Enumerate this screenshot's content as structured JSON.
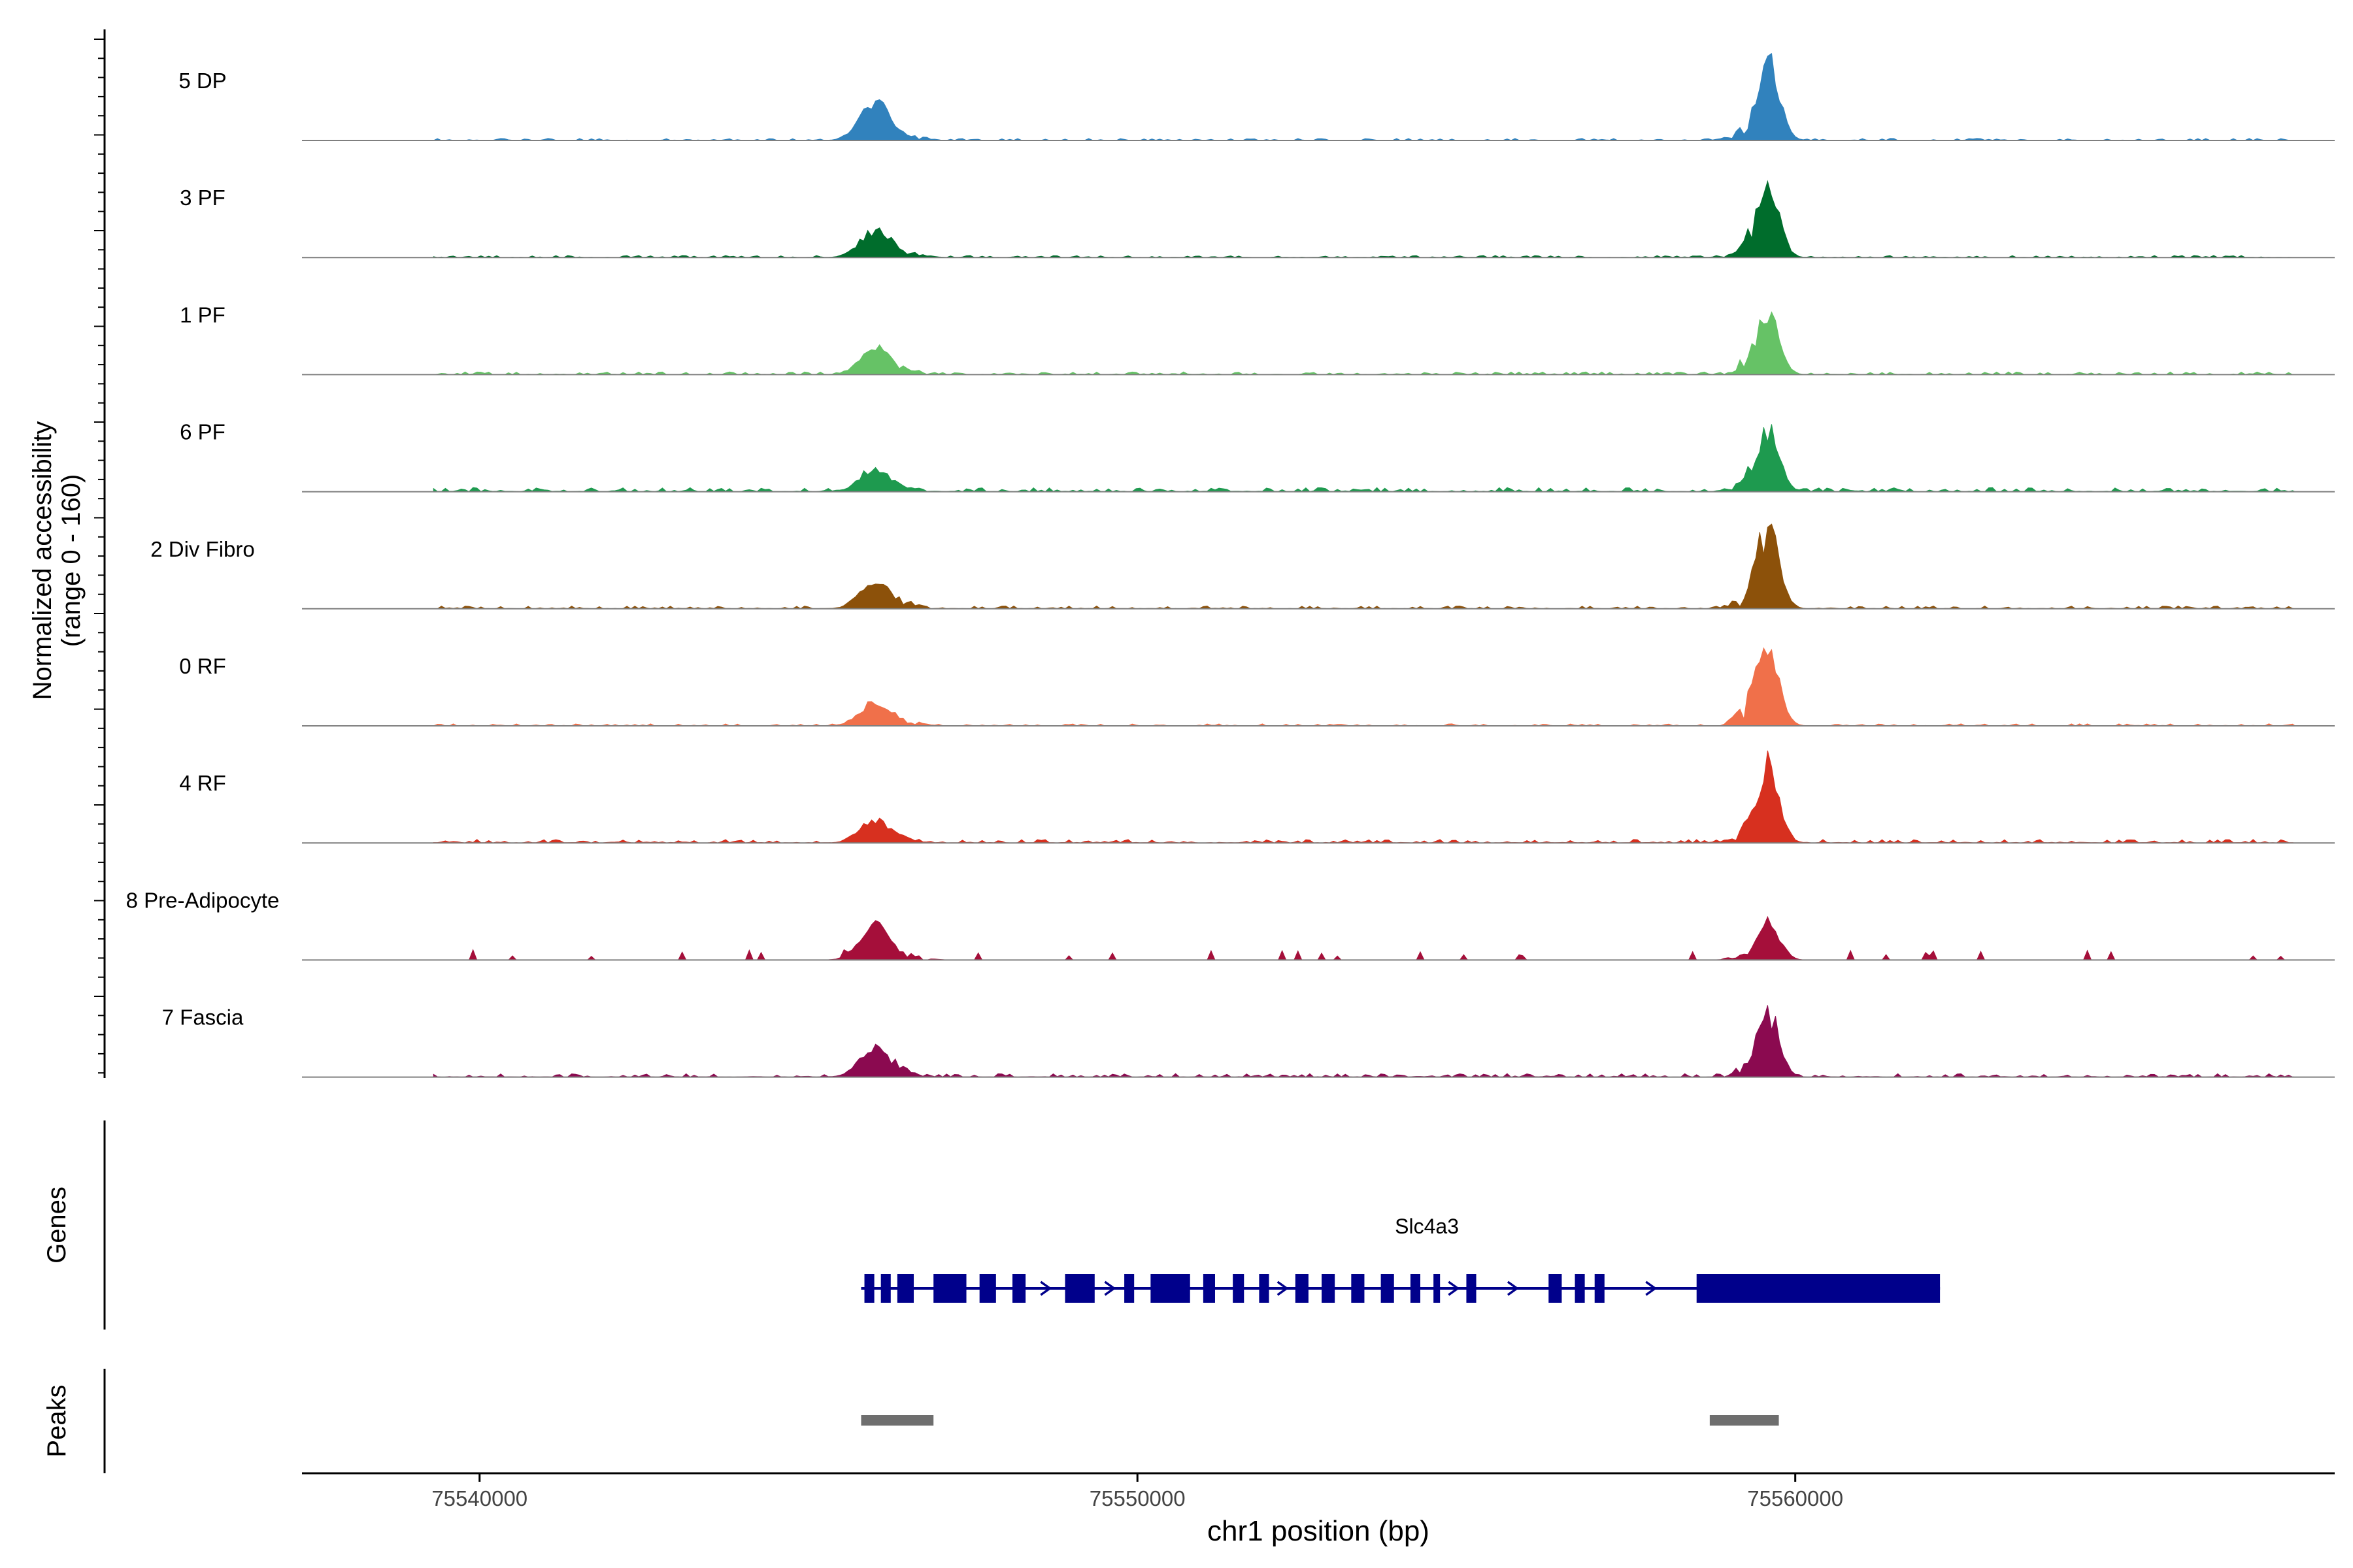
{
  "chart_data": {
    "type": "area",
    "title": "",
    "ylabel_line1": "Normalized accessibility",
    "ylabel_line2": "(range 0 - 160)",
    "xlabel": "chr1 position (bp)",
    "ylim": [
      0,
      160
    ],
    "xlim": [
      75537300,
      75568200
    ],
    "xticks": [
      {
        "value": 75540000,
        "label": "75540000"
      },
      {
        "value": 75550000,
        "label": "75550000"
      },
      {
        "value": 75560000,
        "label": "75560000"
      }
    ],
    "tracks": [
      {
        "name": "5 DP",
        "color": "#3182bd",
        "peak1": 55,
        "peak2": 110,
        "noise": 3,
        "sparse": false
      },
      {
        "name": "3 PF",
        "color": "#006d2c",
        "peak1": 40,
        "peak2": 95,
        "noise": 3,
        "sparse": false
      },
      {
        "name": "1 PF",
        "color": "#66c266",
        "peak1": 40,
        "peak2": 85,
        "noise": 4,
        "sparse": false
      },
      {
        "name": "6 PF",
        "color": "#1e9a4f",
        "peak1": 35,
        "peak2": 85,
        "noise": 6,
        "sparse": false
      },
      {
        "name": "2 Div Fibro",
        "color": "#8c510a",
        "peak1": 40,
        "peak2": 115,
        "noise": 4,
        "sparse": false
      },
      {
        "name": "0 RF",
        "color": "#f0704a",
        "peak1": 35,
        "peak2": 110,
        "noise": 3,
        "sparse": false
      },
      {
        "name": "4 RF",
        "color": "#d7301f",
        "peak1": 35,
        "peak2": 105,
        "noise": 5,
        "sparse": false
      },
      {
        "name": "8 Pre-Adipocyte",
        "color": "#a50f3a",
        "peak1": 50,
        "peak2": 55,
        "noise": 12,
        "sparse": true
      },
      {
        "name": "7 Fascia",
        "color": "#8b0a50",
        "peak1": 45,
        "peak2": 90,
        "noise": 5,
        "sparse": false
      }
    ],
    "peak_centers": [
      75546000,
      75559600
    ],
    "gene": {
      "name": "Slc4a3",
      "start": 75545800,
      "end": 75562200,
      "strand": "+",
      "color": "#00008b",
      "exons": [
        [
          75545850,
          75546000
        ],
        [
          75546100,
          75546250
        ],
        [
          75546350,
          75546600
        ],
        [
          75546900,
          75547400
        ],
        [
          75547600,
          75547850
        ],
        [
          75548100,
          75548300
        ],
        [
          75548900,
          75549350
        ],
        [
          75549800,
          75549950
        ],
        [
          75550200,
          75550800
        ],
        [
          75551000,
          75551180
        ],
        [
          75551450,
          75551620
        ],
        [
          75551850,
          75552000
        ],
        [
          75552400,
          75552600
        ],
        [
          75552800,
          75553000
        ],
        [
          75553250,
          75553450
        ],
        [
          75553700,
          75553900
        ],
        [
          75554150,
          75554300
        ],
        [
          75554500,
          75554600
        ],
        [
          75555000,
          75555150
        ],
        [
          75556250,
          75556450
        ],
        [
          75556650,
          75556800
        ],
        [
          75556950,
          75557100
        ],
        [
          75558500,
          75562200
        ]
      ]
    },
    "gene_track_label": "Genes",
    "peaks_track_label": "Peaks",
    "peaks": [
      {
        "start": 75545800,
        "end": 75546900
      },
      {
        "start": 75558700,
        "end": 75559750
      }
    ]
  }
}
